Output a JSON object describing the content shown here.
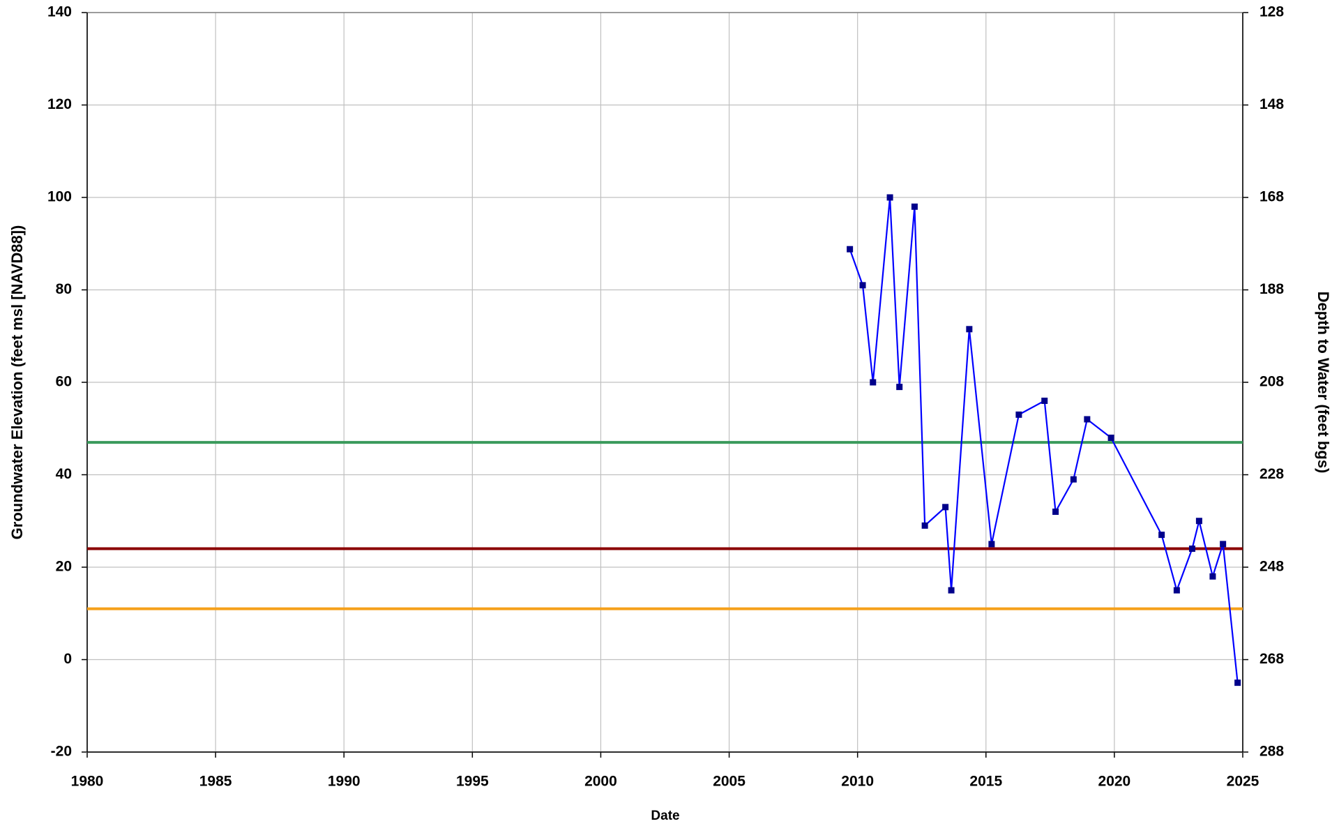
{
  "chart_data": {
    "type": "line",
    "xlabel": "Date",
    "ylabel": "Groundwater Elevation (feet msl [NAVD88])",
    "y2label": "Depth to Water (feet bgs)",
    "x": [
      2009.7,
      2010.2,
      2010.6,
      2011.26,
      2011.63,
      2012.22,
      2012.62,
      2013.42,
      2013.65,
      2014.35,
      2015.22,
      2016.28,
      2017.28,
      2017.71,
      2018.41,
      2018.94,
      2019.87,
      2021.84,
      2022.43,
      2023.03,
      2023.3,
      2023.83,
      2024.23,
      2024.8
    ],
    "series": [
      {
        "color": "#0000ff",
        "marker_color": "#00008b",
        "values": [
          88.8,
          81,
          60,
          100,
          59,
          98,
          29,
          33,
          15,
          71.5,
          25,
          53,
          56,
          32,
          39,
          52,
          48,
          27,
          15,
          24,
          30,
          18,
          25,
          -5
        ]
      }
    ],
    "hlines": [
      {
        "value": 47,
        "color": "#3a9a5c"
      },
      {
        "value": 24,
        "color": "#8b0000"
      },
      {
        "value": 11,
        "color": "#f5a01a"
      }
    ],
    "xlim": [
      1980,
      2025
    ],
    "xticks": [
      1980,
      1985,
      1990,
      1995,
      2000,
      2005,
      2010,
      2015,
      2020,
      2025
    ],
    "ylim": [
      -20,
      140
    ],
    "yticks": [
      -20,
      0,
      20,
      40,
      60,
      80,
      100,
      120,
      140
    ],
    "y2lim": [
      288,
      128
    ],
    "y2ticks": [
      128,
      148,
      168,
      188,
      208,
      228,
      248,
      268,
      288
    ],
    "grid": true
  }
}
